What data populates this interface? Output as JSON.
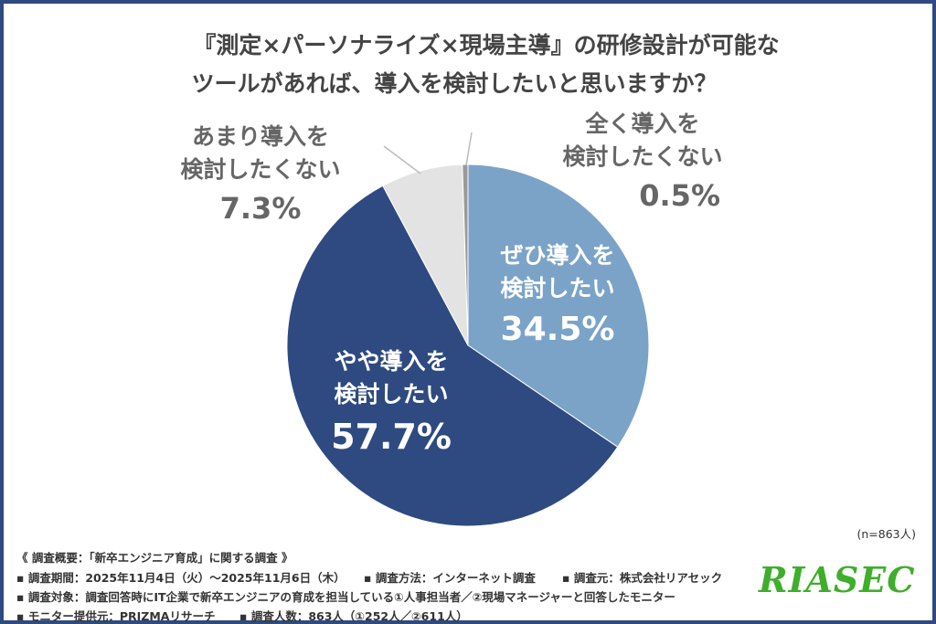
{
  "title_lines": [
    "『測定×パーソナライズ×現場主導』の研修設計が可能な",
    "ツールがあれば、導入を検討したいと思いますか？"
  ],
  "chart_data": {
    "type": "pie",
    "start": "12 o'clock, clockwise",
    "slices": [
      {
        "label_lines": [
          "ぜひ導入を",
          "検討したい"
        ],
        "value": 34.5,
        "value_label": "34.5%",
        "color": "#7ba3c8"
      },
      {
        "label_lines": [
          "やや導入を",
          "検討したい"
        ],
        "value": 57.7,
        "value_label": "57.7%",
        "color": "#2e4a80"
      },
      {
        "label_lines": [
          "あまり導入を",
          "検討したくない"
        ],
        "value": 7.3,
        "value_label": "7.3%",
        "color": "#e3e3e3"
      },
      {
        "label_lines": [
          "全く導入を",
          "検討したくない"
        ],
        "value": 0.5,
        "value_label": "0.5%",
        "color": "#9a9a9a"
      }
    ]
  },
  "sample_size": "(n=863人)",
  "footer": {
    "heading": "《 調査概要：「新卒エンジニア育成」に関する調査 》",
    "period": "▪ 調査期間：2025年11月4日（火）～2025年11月6日（木）",
    "method": "▪ 調査方法：インターネット調査",
    "source": "▪ 調査元：株式会社リアセック",
    "target": "▪ 調査対象：調査回答時にIT企業で新卒エンジニアの育成を担当している①人事担当者／②現場マネージャーと回答したモニター",
    "provider": "▪ モニター提供元：PRIZMAリサーチ",
    "count": "▪ 調査人数：863人（①252人／②611人）"
  },
  "logo_text": "RIASEC"
}
